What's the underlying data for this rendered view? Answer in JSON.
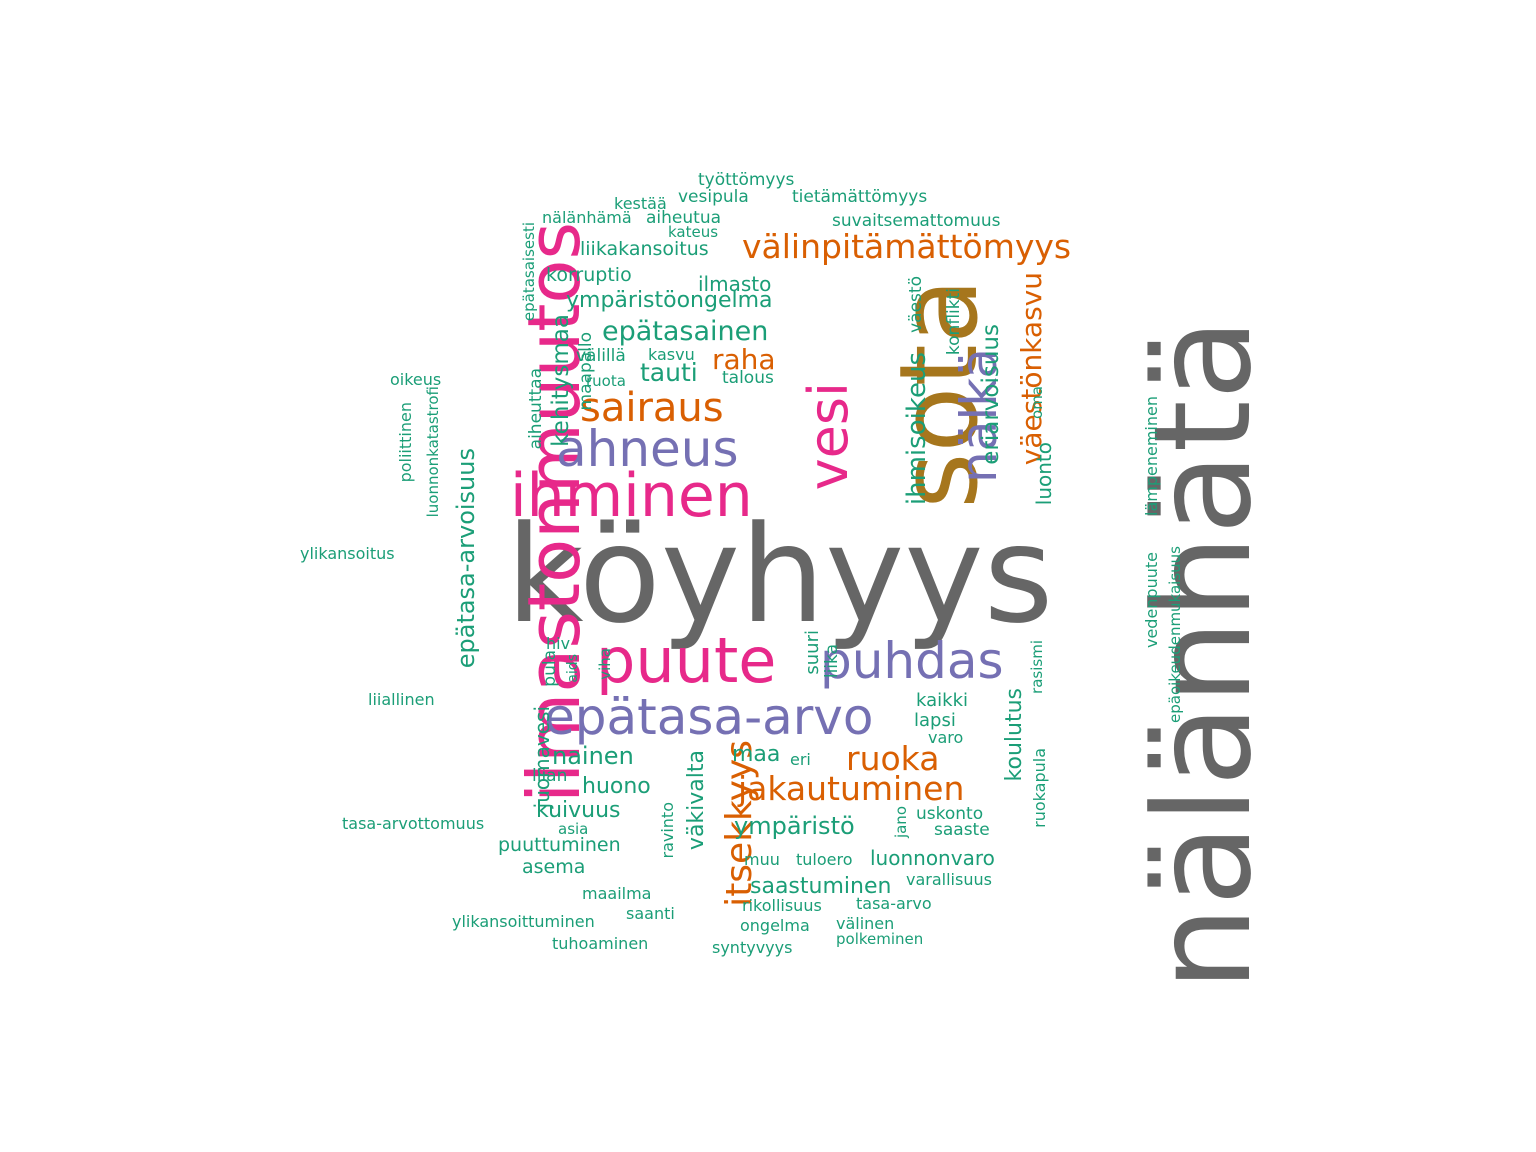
{
  "palette": {
    "gray": "#666666",
    "magenta": "#e7298a",
    "purple": "#7570b3",
    "orange": "#d95f02",
    "green": "#1b9e77",
    "brown": "#a6761d"
  },
  "words": [
    "köyhyys",
    "nälänhätä",
    "sota",
    "ilmastonmuutos",
    "ihminen",
    "puute",
    "vesi",
    "ahneus",
    "puhdas",
    "epätasa-arvo",
    "nälkä",
    "sairaus",
    "välinpitämättömyys",
    "itsekkyys",
    "jakautuminen",
    "ruoka",
    "väestönkasvu",
    "raha",
    "epätasainen",
    "ihmisoikeus",
    "eriarvoisuus",
    "epätasa-arvoisuus",
    "kehitysmaa",
    "ympäristöongelma",
    "tauti",
    "nainen",
    "ympäristö",
    "huono",
    "saastuminen",
    "luonnonvaro",
    "koulutus",
    "väkivalta",
    "maa",
    "kuivuus",
    "juomavesi",
    "puuttuminen",
    "liikakansoitus",
    "ilmasto",
    "korruptio",
    "asema",
    "luonto",
    "työttömyys",
    "tietämättömyys",
    "vesipula",
    "kestää",
    "nälänhämä",
    "aiheutua",
    "kateus",
    "suvaitsemattomuus",
    "talous",
    "välillä",
    "kasvu",
    "ruota",
    "maapallo",
    "aiheuttaa",
    "epätasaisesti",
    "oikeus",
    "poliittinen",
    "luonnonkatastrofi",
    "ylikansoitus",
    "väestö",
    "konflikti",
    "oma",
    "vedenpuute",
    "lämpeneminen",
    "epäoikeudenmukaisuus",
    "hiv",
    "aids",
    "pula",
    "viha",
    "suuri",
    "liika",
    "rasismi",
    "kaikki",
    "lapsi",
    "varo",
    "eri",
    "liiallinen",
    "liian",
    "tasa-arvottomuus",
    "asia",
    "ravinto",
    "jano",
    "uskonto",
    "saaste",
    "ruokapula",
    "muu",
    "tuloero",
    "varallisuus",
    "maailma",
    "saanti",
    "rikollisuus",
    "tasa-arvo",
    "ylikansoittuminen",
    "ongelma",
    "välinen",
    "tuhoaminen",
    "syntyvyys",
    "polkeminen"
  ]
}
